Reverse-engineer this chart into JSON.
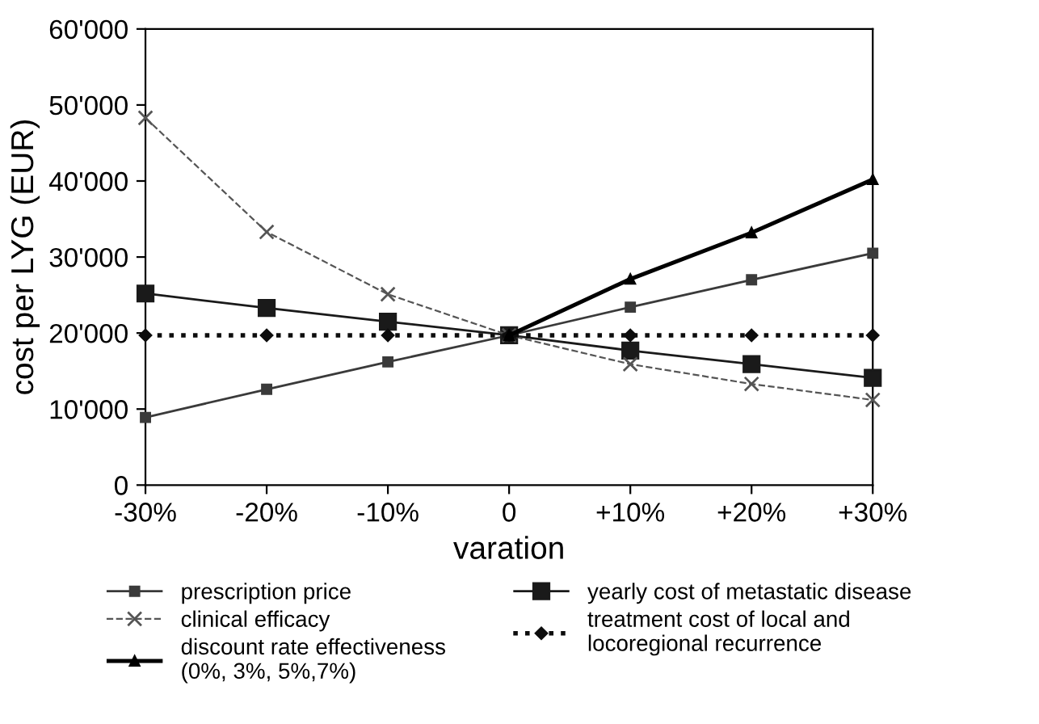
{
  "chart_data": {
    "type": "line",
    "xlabel": "varation",
    "ylabel": "cost per LYG (EUR)",
    "categories": [
      "-30%",
      "-20%",
      "-10%",
      "0",
      "+10%",
      "+20%",
      "+30%"
    ],
    "ylim": [
      0,
      60000
    ],
    "yticks": [
      {
        "value": 0,
        "label": "0"
      },
      {
        "value": 10000,
        "label": "10'000"
      },
      {
        "value": 20000,
        "label": "20'000"
      },
      {
        "value": 30000,
        "label": "30'000"
      },
      {
        "value": 40000,
        "label": "40'000"
      },
      {
        "value": 50000,
        "label": "50'000"
      },
      {
        "value": 60000,
        "label": "60'000"
      }
    ],
    "grid": false,
    "legend": "bottom",
    "series": [
      {
        "name": "prescription price",
        "color": "#3a3a3a",
        "marker": "square",
        "line_style": "solid",
        "values": [
          8900,
          12600,
          16200,
          19700,
          23400,
          27000,
          30500
        ]
      },
      {
        "name": "clinical efficacy",
        "color": "#555555",
        "marker": "cross",
        "line_style": "dashed",
        "values": [
          48300,
          33300,
          25100,
          19700,
          15900,
          13300,
          11200
        ]
      },
      {
        "name": "discount rate effectiveness\n(0%, 3%, 5%,7%)",
        "color": "#000000",
        "marker": "triangle",
        "line_style": "solid",
        "values": [
          null,
          null,
          null,
          19700,
          27100,
          33200,
          40200
        ]
      },
      {
        "name": "yearly cost of metastatic disease",
        "color": "#1a1a1a",
        "marker": "square",
        "line_style": "solid",
        "values": [
          25200,
          23300,
          21500,
          19700,
          17700,
          15900,
          14100
        ]
      },
      {
        "name": "treatment cost of local and\nlocoregional recurrence",
        "color": "#0d0d0d",
        "marker": "diamond",
        "line_style": "dotted",
        "values": [
          19700,
          19700,
          19700,
          19700,
          19700,
          19700,
          19700
        ]
      }
    ]
  }
}
